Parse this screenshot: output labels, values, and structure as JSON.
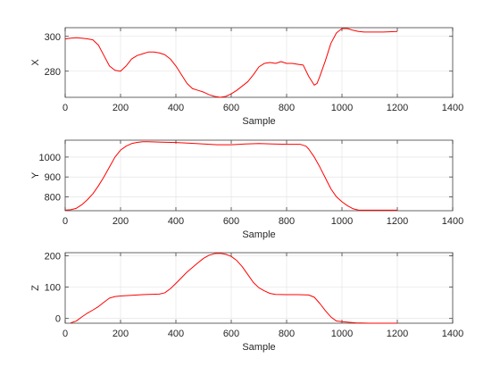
{
  "chart_data": [
    {
      "type": "line",
      "title": "",
      "xlabel": "Sample",
      "ylabel": "X",
      "xlim": [
        0,
        1400
      ],
      "ylim": [
        265,
        305
      ],
      "xticks": [
        0,
        200,
        400,
        600,
        800,
        1000,
        1200,
        1400
      ],
      "yticks": [
        280,
        300
      ],
      "grid": true,
      "series": [
        {
          "color": "#ff0000",
          "points": [
            [
              0,
              298.5
            ],
            [
              20,
              299
            ],
            [
              40,
              299.2
            ],
            [
              60,
              299
            ],
            [
              80,
              298.6
            ],
            [
              100,
              298
            ],
            [
              120,
              295
            ],
            [
              140,
              289
            ],
            [
              160,
              283
            ],
            [
              180,
              280.5
            ],
            [
              200,
              280
            ],
            [
              220,
              283
            ],
            [
              240,
              287
            ],
            [
              260,
              289
            ],
            [
              280,
              290
            ],
            [
              300,
              291
            ],
            [
              320,
              291
            ],
            [
              340,
              290.5
            ],
            [
              360,
              289.5
            ],
            [
              380,
              287
            ],
            [
              400,
              283
            ],
            [
              420,
              278
            ],
            [
              440,
              273
            ],
            [
              460,
              270
            ],
            [
              480,
              269
            ],
            [
              500,
              268
            ],
            [
              520,
              266.5
            ],
            [
              540,
              265.5
            ],
            [
              560,
              265
            ],
            [
              580,
              265.5
            ],
            [
              600,
              267
            ],
            [
              620,
              269
            ],
            [
              640,
              271.5
            ],
            [
              660,
              274
            ],
            [
              680,
              278
            ],
            [
              700,
              282.5
            ],
            [
              720,
              284.5
            ],
            [
              740,
              285
            ],
            [
              760,
              284.5
            ],
            [
              780,
              285.5
            ],
            [
              800,
              284.5
            ],
            [
              820,
              284.5
            ],
            [
              840,
              284
            ],
            [
              860,
              283.5
            ],
            [
              880,
              277
            ],
            [
              900,
              272
            ],
            [
              910,
              273
            ],
            [
              920,
              277
            ],
            [
              940,
              286
            ],
            [
              960,
              296
            ],
            [
              980,
              302
            ],
            [
              1000,
              304.5
            ],
            [
              1020,
              304.5
            ],
            [
              1040,
              303.5
            ],
            [
              1060,
              302.8
            ],
            [
              1080,
              302.5
            ],
            [
              1100,
              302.5
            ],
            [
              1150,
              302.5
            ],
            [
              1200,
              302.8
            ]
          ]
        }
      ]
    },
    {
      "type": "line",
      "title": "",
      "xlabel": "Sample",
      "ylabel": "Y",
      "xlim": [
        0,
        1400
      ],
      "ylim": [
        730,
        1085
      ],
      "xticks": [
        0,
        200,
        400,
        600,
        800,
        1000,
        1200,
        1400
      ],
      "yticks": [
        800,
        900,
        1000
      ],
      "grid": true,
      "series": [
        {
          "color": "#ff0000",
          "points": [
            [
              0,
              733
            ],
            [
              20,
              735
            ],
            [
              40,
              742
            ],
            [
              60,
              760
            ],
            [
              80,
              785
            ],
            [
              100,
              815
            ],
            [
              120,
              855
            ],
            [
              140,
              900
            ],
            [
              160,
              950
            ],
            [
              180,
              1000
            ],
            [
              200,
              1035
            ],
            [
              220,
              1055
            ],
            [
              240,
              1068
            ],
            [
              260,
              1074
            ],
            [
              280,
              1077
            ],
            [
              300,
              1077
            ],
            [
              350,
              1075
            ],
            [
              400,
              1073
            ],
            [
              450,
              1070
            ],
            [
              500,
              1066
            ],
            [
              550,
              1062
            ],
            [
              600,
              1062
            ],
            [
              650,
              1066
            ],
            [
              700,
              1068
            ],
            [
              750,
              1066
            ],
            [
              800,
              1064
            ],
            [
              850,
              1064
            ],
            [
              870,
              1055
            ],
            [
              880,
              1040
            ],
            [
              900,
              1000
            ],
            [
              920,
              950
            ],
            [
              940,
              895
            ],
            [
              960,
              840
            ],
            [
              980,
              800
            ],
            [
              1000,
              775
            ],
            [
              1020,
              755
            ],
            [
              1040,
              740
            ],
            [
              1060,
              733
            ],
            [
              1100,
              733
            ],
            [
              1150,
              733
            ],
            [
              1200,
              733
            ]
          ]
        }
      ]
    },
    {
      "type": "line",
      "title": "",
      "xlabel": "Sample",
      "ylabel": "Z",
      "xlim": [
        0,
        1400
      ],
      "ylim": [
        -15,
        210
      ],
      "xticks": [
        0,
        200,
        400,
        600,
        800,
        1000,
        1200,
        1400
      ],
      "yticks": [
        0,
        100,
        200
      ],
      "grid": true,
      "series": [
        {
          "color": "#ff0000",
          "points": [
            [
              20,
              -14
            ],
            [
              40,
              -8
            ],
            [
              60,
              5
            ],
            [
              80,
              17
            ],
            [
              100,
              27
            ],
            [
              120,
              38
            ],
            [
              140,
              52
            ],
            [
              160,
              65
            ],
            [
              180,
              70
            ],
            [
              200,
              72
            ],
            [
              240,
              74
            ],
            [
              280,
              76
            ],
            [
              300,
              77
            ],
            [
              340,
              78
            ],
            [
              360,
              82
            ],
            [
              380,
              95
            ],
            [
              400,
              112
            ],
            [
              420,
              130
            ],
            [
              440,
              148
            ],
            [
              460,
              163
            ],
            [
              480,
              178
            ],
            [
              500,
              192
            ],
            [
              520,
              202
            ],
            [
              540,
              207
            ],
            [
              560,
              208
            ],
            [
              580,
              205
            ],
            [
              600,
              198
            ],
            [
              620,
              185
            ],
            [
              640,
              165
            ],
            [
              660,
              140
            ],
            [
              680,
              115
            ],
            [
              700,
              98
            ],
            [
              720,
              88
            ],
            [
              740,
              80
            ],
            [
              760,
              77
            ],
            [
              800,
              76
            ],
            [
              840,
              76
            ],
            [
              880,
              75
            ],
            [
              900,
              68
            ],
            [
              920,
              48
            ],
            [
              940,
              25
            ],
            [
              960,
              5
            ],
            [
              980,
              -8
            ],
            [
              1000,
              -10
            ],
            [
              1050,
              -14
            ],
            [
              1100,
              -15
            ],
            [
              1150,
              -15
            ],
            [
              1200,
              -15
            ]
          ]
        }
      ]
    }
  ]
}
